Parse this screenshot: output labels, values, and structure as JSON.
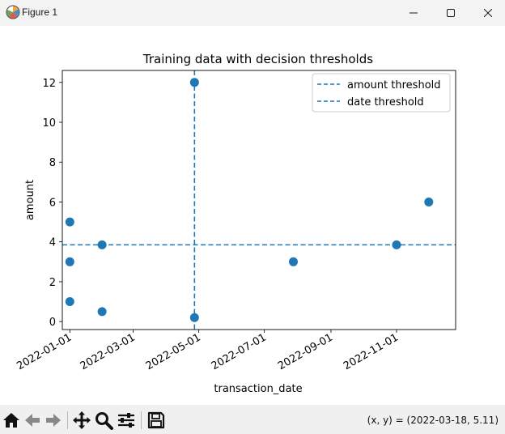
{
  "window": {
    "title": "Figure 1",
    "icon": "matplotlib-logo-icon",
    "controls": [
      "minimize-icon",
      "maximize-icon",
      "close-icon"
    ]
  },
  "colors": {
    "series": "#1f77b4",
    "titlebar": "#f3f3f3",
    "toolbar": "#f0f0f0"
  },
  "chart_data": {
    "type": "scatter",
    "title": "Training data with decision thresholds",
    "xlabel": "transaction_date",
    "ylabel": "amount",
    "x_type": "date",
    "xlim": [
      "2021-12-25",
      "2022-12-26"
    ],
    "ylim": [
      -0.4,
      12.6
    ],
    "x_ticks": [
      "2022-01-01",
      "2022-03-01",
      "2022-05-01",
      "2022-07-01",
      "2022-09-01",
      "2022-11-01"
    ],
    "y_ticks": [
      0,
      2,
      4,
      6,
      8,
      10,
      12
    ],
    "points": [
      {
        "x": "2022-01-01",
        "y": 5
      },
      {
        "x": "2022-01-01",
        "y": 3
      },
      {
        "x": "2022-01-01",
        "y": 1
      },
      {
        "x": "2022-01-31",
        "y": 3.85
      },
      {
        "x": "2022-01-31",
        "y": 0.5
      },
      {
        "x": "2022-04-27",
        "y": 12
      },
      {
        "x": "2022-04-27",
        "y": 0.2
      },
      {
        "x": "2022-07-28",
        "y": 3
      },
      {
        "x": "2022-11-01",
        "y": 3.85
      },
      {
        "x": "2022-12-01",
        "y": 6
      }
    ],
    "thresholds": [
      {
        "name": "amount threshold",
        "orientation": "horizontal",
        "value": 3.85
      },
      {
        "name": "date threshold",
        "orientation": "vertical",
        "value": "2022-04-27"
      }
    ],
    "legend": {
      "placement": "upper right",
      "entries": [
        "amount threshold",
        "date threshold"
      ]
    },
    "grid": false
  },
  "toolbar": {
    "buttons": [
      {
        "name": "home-icon"
      },
      {
        "name": "back-arrow-icon"
      },
      {
        "name": "forward-arrow-icon"
      },
      {
        "name": "pan-icon"
      },
      {
        "name": "zoom-icon"
      },
      {
        "name": "configure-subplots-icon"
      },
      {
        "name": "save-icon"
      }
    ],
    "coordinates": "(x, y) = (2022-03-18, 5.11)"
  }
}
